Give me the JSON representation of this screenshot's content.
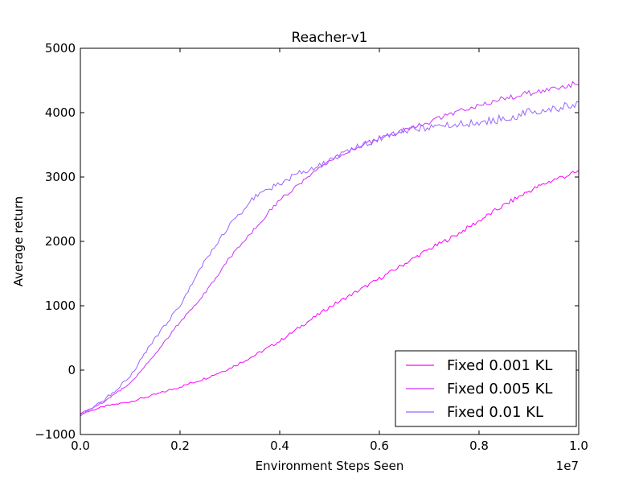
{
  "chart_data": {
    "type": "line",
    "title": "Reacher-v1",
    "xlabel": "Environment Steps Seen",
    "ylabel": "Average return",
    "x_offset_label": "1e7",
    "xlim": [
      0.0,
      1.0
    ],
    "ylim": [
      -1000,
      5000
    ],
    "xticks": [
      0.0,
      0.2,
      0.4,
      0.6,
      0.8,
      1.0
    ],
    "xtick_labels": [
      "0.0",
      "0.2",
      "0.4",
      "0.6",
      "0.8",
      "1.0"
    ],
    "yticks": [
      -1000,
      0,
      1000,
      2000,
      3000,
      4000,
      5000
    ],
    "ytick_labels": [
      "−1000",
      "0",
      "1000",
      "2000",
      "3000",
      "4000",
      "5000"
    ],
    "grid": false,
    "legend_position": "lower-right",
    "series": [
      {
        "name": "Fixed 0.001 KL",
        "color": "#ff00ff",
        "x": [
          0.0,
          0.05,
          0.1,
          0.15,
          0.2,
          0.25,
          0.3,
          0.35,
          0.4,
          0.45,
          0.5,
          0.55,
          0.6,
          0.65,
          0.7,
          0.75,
          0.8,
          0.85,
          0.9,
          0.95,
          1.0
        ],
        "y": [
          -680,
          -560,
          -490,
          -380,
          -260,
          -130,
          30,
          230,
          450,
          720,
          980,
          1200,
          1420,
          1650,
          1880,
          2080,
          2320,
          2560,
          2780,
          2960,
          3080
        ]
      },
      {
        "name": "Fixed 0.005 KL",
        "color": "#cc33ff",
        "x": [
          0.0,
          0.05,
          0.1,
          0.15,
          0.2,
          0.25,
          0.3,
          0.35,
          0.4,
          0.45,
          0.5,
          0.55,
          0.6,
          0.65,
          0.7,
          0.75,
          0.8,
          0.85,
          0.9,
          0.95,
          1.0
        ],
        "y": [
          -680,
          -480,
          -200,
          250,
          750,
          1200,
          1750,
          2200,
          2650,
          2950,
          3250,
          3450,
          3600,
          3720,
          3850,
          4000,
          4120,
          4220,
          4300,
          4380,
          4450
        ]
      },
      {
        "name": "Fixed 0.01 KL",
        "color": "#9966ff",
        "x": [
          0.0,
          0.05,
          0.1,
          0.15,
          0.2,
          0.25,
          0.3,
          0.35,
          0.4,
          0.45,
          0.5,
          0.55,
          0.6,
          0.65,
          0.7,
          0.75,
          0.8,
          0.85,
          0.9,
          0.95,
          1.0
        ],
        "y": [
          -700,
          -450,
          -100,
          500,
          1000,
          1700,
          2250,
          2700,
          2900,
          3100,
          3250,
          3450,
          3600,
          3720,
          3780,
          3800,
          3850,
          3900,
          4000,
          4080,
          4100
        ]
      }
    ]
  }
}
